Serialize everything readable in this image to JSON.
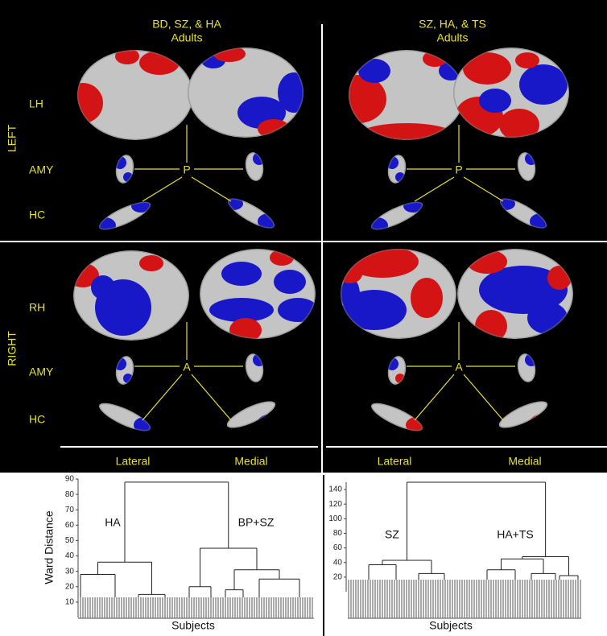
{
  "panels": [
    {
      "title": "BD, SZ, & HA",
      "subtitle": "Adults"
    },
    {
      "title": "SZ, HA, & TS",
      "subtitle": "Adults"
    }
  ],
  "rows": [
    {
      "side": "LEFT",
      "labels": [
        "LH",
        "AMY",
        "HC"
      ],
      "hub": "P"
    },
    {
      "side": "RIGHT",
      "labels": [
        "RH",
        "AMY",
        "HC"
      ],
      "hub": "A"
    }
  ],
  "views": [
    [
      "Lateral",
      "Medial"
    ],
    [
      "Lateral",
      "Medial"
    ]
  ],
  "dendrograms": [
    {
      "y_label": "Ward Distance",
      "x_label": "Subjects",
      "ylim": [
        0,
        90
      ],
      "yticks": [
        10,
        20,
        30,
        40,
        50,
        60,
        70,
        80,
        90
      ],
      "clusters": [
        "HA",
        "BP+SZ"
      ],
      "heights": [
        88,
        36,
        45,
        28,
        15,
        20,
        31,
        18,
        25
      ]
    },
    {
      "x_label": "Subjects",
      "ylim": [
        0,
        150
      ],
      "yticks": [
        20,
        40,
        60,
        80,
        100,
        120,
        140
      ],
      "clusters": [
        "SZ",
        "HA+TS"
      ],
      "heights": [
        150,
        43,
        48,
        37,
        25,
        45,
        22,
        30,
        25
      ]
    }
  ]
}
